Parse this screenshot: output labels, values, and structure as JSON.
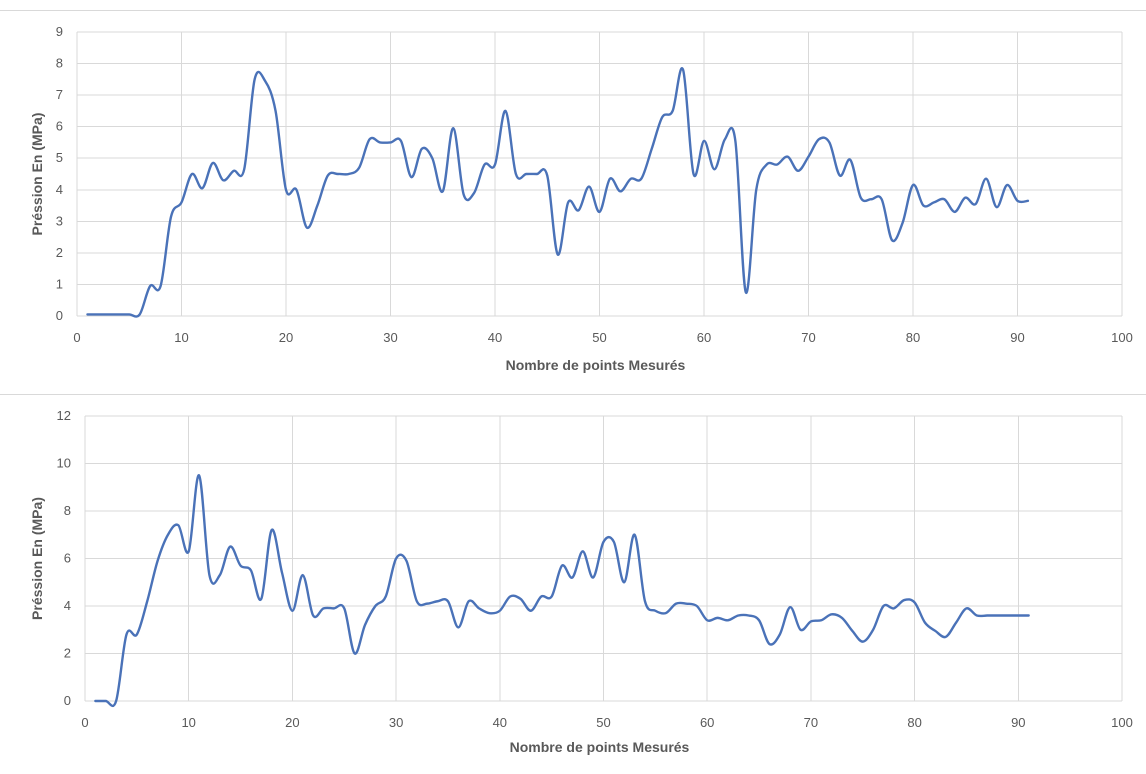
{
  "chart_data": [
    {
      "type": "line",
      "title": "",
      "xlabel": "Nombre de points Mesurés",
      "ylabel": "Préssion En (MPa)",
      "xlim": [
        0,
        100
      ],
      "ylim": [
        0,
        9
      ],
      "xticks": [
        0,
        10,
        20,
        30,
        40,
        50,
        60,
        70,
        80,
        90,
        100
      ],
      "yticks": [
        0,
        1,
        2,
        3,
        4,
        5,
        6,
        7,
        8,
        9
      ],
      "grid": true,
      "legend": "none",
      "color": "#4a72b8",
      "x": [
        1,
        2,
        3,
        4,
        5,
        6,
        7,
        8,
        9,
        10,
        11,
        12,
        13,
        14,
        15,
        16,
        17,
        18,
        19,
        20,
        21,
        22,
        23,
        24,
        25,
        26,
        27,
        28,
        29,
        30,
        31,
        32,
        33,
        34,
        35,
        36,
        37,
        38,
        39,
        40,
        41,
        42,
        43,
        44,
        45,
        46,
        47,
        48,
        49,
        50,
        51,
        52,
        53,
        54,
        55,
        56,
        57,
        58,
        59,
        60,
        61,
        62,
        63,
        64,
        65,
        66,
        67,
        68,
        69,
        70,
        71,
        72,
        73,
        74,
        75,
        76,
        77,
        78,
        79,
        80,
        81,
        82,
        83,
        84,
        85,
        86,
        87,
        88,
        89,
        90,
        91
      ],
      "values": [
        0.05,
        0.05,
        0.05,
        0.05,
        0.05,
        0.05,
        0.95,
        0.95,
        3.15,
        3.6,
        4.5,
        4.05,
        4.85,
        4.3,
        4.6,
        4.65,
        7.5,
        7.45,
        6.5,
        4.0,
        4.0,
        2.8,
        3.5,
        4.45,
        4.5,
        4.5,
        4.7,
        5.6,
        5.5,
        5.5,
        5.55,
        4.4,
        5.3,
        5.0,
        3.95,
        5.95,
        3.85,
        3.9,
        4.8,
        4.8,
        6.5,
        4.5,
        4.5,
        4.5,
        4.45,
        1.95,
        3.6,
        3.35,
        4.1,
        3.3,
        4.35,
        3.95,
        4.35,
        4.35,
        5.3,
        6.3,
        6.5,
        7.8,
        4.5,
        5.55,
        4.65,
        5.6,
        5.55,
        0.75,
        4.0,
        4.8,
        4.8,
        5.05,
        4.6,
        5.05,
        5.6,
        5.5,
        4.45,
        4.95,
        3.75,
        3.7,
        3.7,
        2.4,
        2.95,
        4.15,
        3.5,
        3.6,
        3.7,
        3.3,
        3.75,
        3.55,
        4.35,
        3.45,
        4.15,
        3.65,
        3.65
      ]
    },
    {
      "type": "line",
      "title": "",
      "xlabel": "Nombre de points Mesurés",
      "ylabel": "Préssion En (MPa)",
      "xlim": [
        0,
        100
      ],
      "ylim": [
        0,
        12
      ],
      "xticks": [
        0,
        10,
        20,
        30,
        40,
        50,
        60,
        70,
        80,
        90,
        100
      ],
      "yticks": [
        0,
        2,
        4,
        6,
        8,
        10,
        12
      ],
      "grid": true,
      "legend": "none",
      "color": "#4a72b8",
      "x": [
        1,
        2,
        3,
        4,
        5,
        6,
        7,
        8,
        9,
        10,
        11,
        12,
        13,
        14,
        15,
        16,
        17,
        18,
        19,
        20,
        21,
        22,
        23,
        24,
        25,
        26,
        27,
        28,
        29,
        30,
        31,
        32,
        33,
        34,
        35,
        36,
        37,
        38,
        39,
        40,
        41,
        42,
        43,
        44,
        45,
        46,
        47,
        48,
        49,
        50,
        51,
        52,
        53,
        54,
        55,
        56,
        57,
        58,
        59,
        60,
        61,
        62,
        63,
        64,
        65,
        66,
        67,
        68,
        69,
        70,
        71,
        72,
        73,
        74,
        75,
        76,
        77,
        78,
        79,
        80,
        81,
        82,
        83,
        84,
        85,
        86,
        87,
        88,
        89,
        90,
        91
      ],
      "values": [
        0.0,
        0.0,
        0.0,
        2.8,
        2.8,
        4.2,
        5.9,
        7.0,
        7.4,
        6.3,
        9.5,
        5.3,
        5.3,
        6.5,
        5.7,
        5.5,
        4.3,
        7.2,
        5.4,
        3.8,
        5.3,
        3.6,
        3.9,
        3.9,
        3.9,
        2.0,
        3.2,
        4.0,
        4.4,
        6.0,
        5.9,
        4.2,
        4.1,
        4.2,
        4.2,
        3.1,
        4.2,
        3.9,
        3.7,
        3.8,
        4.4,
        4.3,
        3.8,
        4.4,
        4.4,
        5.7,
        5.2,
        6.3,
        5.2,
        6.7,
        6.7,
        5.0,
        7.0,
        4.2,
        3.8,
        3.7,
        4.1,
        4.1,
        4.0,
        3.4,
        3.5,
        3.4,
        3.6,
        3.6,
        3.4,
        2.4,
        2.8,
        3.95,
        3.0,
        3.35,
        3.4,
        3.65,
        3.5,
        2.95,
        2.5,
        3.0,
        4.0,
        3.9,
        4.25,
        4.15,
        3.3,
        2.95,
        2.7,
        3.3,
        3.9,
        3.6,
        3.6,
        3.6,
        3.6,
        3.6,
        3.6
      ]
    }
  ]
}
